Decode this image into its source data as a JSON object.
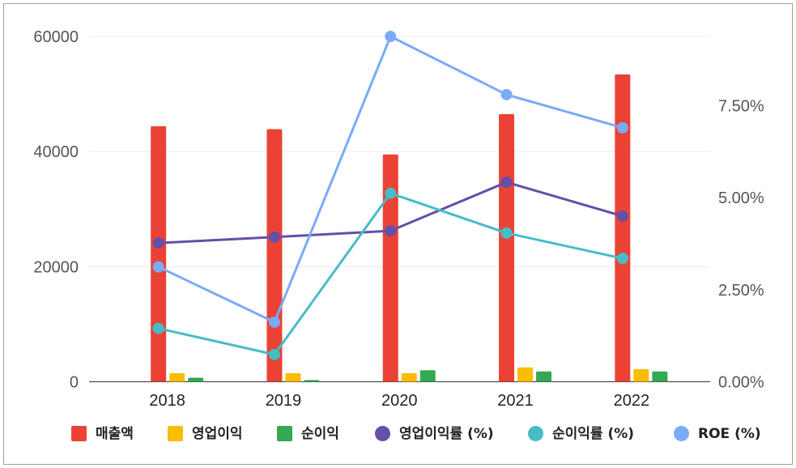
{
  "chart_data": {
    "type": "bar",
    "categories": [
      "2018",
      "2019",
      "2020",
      "2021",
      "2022"
    ],
    "bar_series": [
      {
        "name": "매출액",
        "color": "#ea4335",
        "values": [
          44400,
          43900,
          39500,
          46500,
          53400
        ]
      },
      {
        "name": "영업이익",
        "color": "#fbbc04",
        "values": [
          1500,
          1500,
          1500,
          2500,
          2200
        ]
      },
      {
        "name": "순이익",
        "color": "#34a853",
        "values": [
          700,
          300,
          2000,
          1800,
          1800
        ]
      }
    ],
    "line_series": [
      {
        "name": "영업이익률 (%)",
        "color": "#674ea7",
        "axis": "right",
        "values": [
          3.77,
          3.93,
          4.1,
          5.42,
          4.5
        ]
      },
      {
        "name": "순이익률 (%)",
        "color": "#46bdc6",
        "axis": "right",
        "values": [
          1.45,
          0.74,
          5.12,
          4.04,
          3.35
        ]
      },
      {
        "name": "ROE (%)",
        "color": "#7baaf7",
        "axis": "right",
        "values": [
          3.12,
          1.62,
          9.38,
          7.8,
          6.9
        ]
      }
    ],
    "left_axis": {
      "ylim": [
        0,
        60000
      ],
      "ticks": [
        "0",
        "20000",
        "40000",
        "60000"
      ]
    },
    "right_axis": {
      "ylim": [
        0,
        9.38
      ],
      "ticks": [
        "0.00%",
        "2.50%",
        "5.00%",
        "7.50%"
      ]
    },
    "legend_position": "bottom",
    "grid": true
  }
}
